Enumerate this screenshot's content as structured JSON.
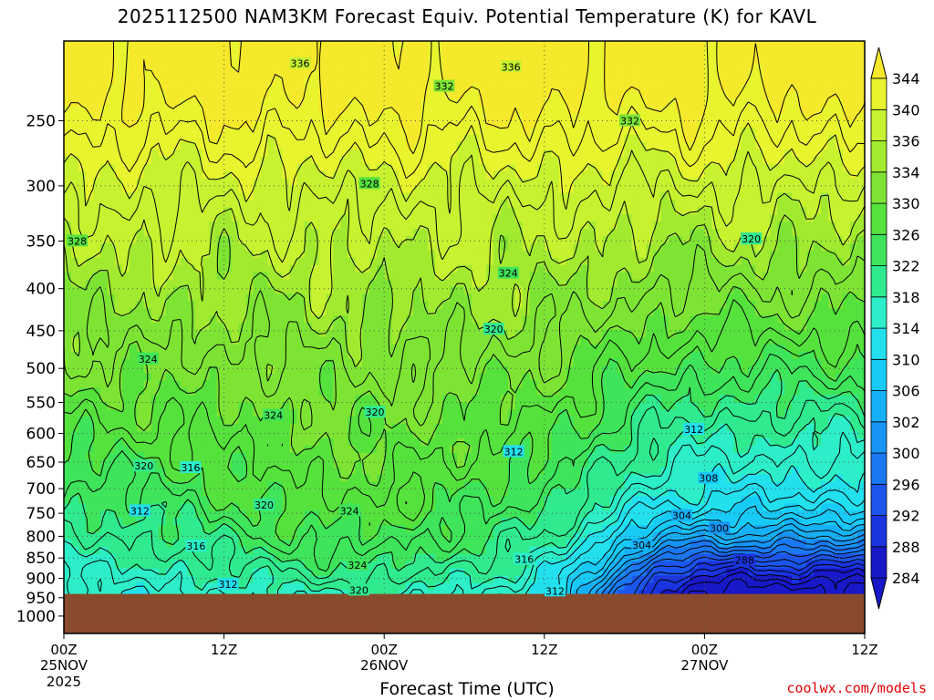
{
  "header": {
    "title": "2025112500 NAM3KM Forecast Equiv. Potential Temperature (K) for KAVL"
  },
  "footer": {
    "xlabel": "Forecast Time (UTC)",
    "credit": "coolwx.com/models"
  },
  "colors": {
    "ground": "#8b4a2b",
    "frame": "#000000",
    "contour": "#000000",
    "grid": "#555555"
  },
  "chart_data": {
    "type": "heatmap",
    "title": "2025112500 NAM3KM Forecast Equiv. Potential Temperature (K) for KAVL",
    "xlabel": "Forecast Time (UTC)",
    "ylabel": "",
    "x_range_hours": [
      0,
      60
    ],
    "x_ticks": [
      {
        "hour": 0,
        "label": "00Z",
        "sub": "25NOV",
        "sub2": "2025"
      },
      {
        "hour": 12,
        "label": "12Z",
        "sub": "",
        "sub2": ""
      },
      {
        "hour": 24,
        "label": "00Z",
        "sub": "26NOV",
        "sub2": ""
      },
      {
        "hour": 36,
        "label": "12Z",
        "sub": "",
        "sub2": ""
      },
      {
        "hour": 48,
        "label": "00Z",
        "sub": "27NOV",
        "sub2": ""
      },
      {
        "hour": 60,
        "label": "12Z",
        "sub": "",
        "sub2": ""
      }
    ],
    "y_axis": "pressure (hPa), log scale, decreasing upward",
    "y_range": [
      1050,
      200
    ],
    "y_ticks": [
      250,
      300,
      350,
      400,
      450,
      500,
      550,
      600,
      650,
      700,
      750,
      800,
      850,
      900,
      950,
      1000
    ],
    "surface_pressure_hPa": 940,
    "colorbar": {
      "levels": [
        284,
        288,
        292,
        296,
        300,
        302,
        306,
        310,
        314,
        318,
        322,
        326,
        330,
        334,
        336,
        340,
        344
      ],
      "colors": [
        "#1818c8",
        "#1a35e0",
        "#1c55ec",
        "#1a78f2",
        "#1795f4",
        "#16b0f6",
        "#18cbf6",
        "#22e0ee",
        "#2ceec8",
        "#30ea90",
        "#3ee45a",
        "#56e23c",
        "#7ee434",
        "#a2ea30",
        "#c6f230",
        "#e8f42e",
        "#f6e82a"
      ],
      "extend": "both"
    },
    "contour_interval_K": 2,
    "contour_labels": [
      {
        "value": "336",
        "hour": 17.7,
        "p": 213
      },
      {
        "value": "336",
        "hour": 33.5,
        "p": 215
      },
      {
        "value": "332",
        "hour": 28.5,
        "p": 227
      },
      {
        "value": "332",
        "hour": 42.4,
        "p": 250
      },
      {
        "value": "328",
        "hour": 22.9,
        "p": 298
      },
      {
        "value": "328",
        "hour": 1,
        "p": 350
      },
      {
        "value": "320",
        "hour": 51.5,
        "p": 348
      },
      {
        "value": "324",
        "hour": 33.3,
        "p": 383
      },
      {
        "value": "320",
        "hour": 32.2,
        "p": 448
      },
      {
        "value": "324",
        "hour": 6.3,
        "p": 487
      },
      {
        "value": "324",
        "hour": 15.7,
        "p": 570
      },
      {
        "value": "320",
        "hour": 23.3,
        "p": 565
      },
      {
        "value": "312",
        "hour": 47.2,
        "p": 593
      },
      {
        "value": "312",
        "hour": 33.7,
        "p": 631
      },
      {
        "value": "320",
        "hour": 6.0,
        "p": 657
      },
      {
        "value": "316",
        "hour": 9.5,
        "p": 660
      },
      {
        "value": "308",
        "hour": 48.3,
        "p": 680
      },
      {
        "value": "312",
        "hour": 5.7,
        "p": 745
      },
      {
        "value": "320",
        "hour": 15.0,
        "p": 733
      },
      {
        "value": "324",
        "hour": 21.4,
        "p": 745
      },
      {
        "value": "304",
        "hour": 46.3,
        "p": 755
      },
      {
        "value": "300",
        "hour": 49.1,
        "p": 782
      },
      {
        "value": "316",
        "hour": 9.9,
        "p": 822
      },
      {
        "value": "304",
        "hour": 43.3,
        "p": 820
      },
      {
        "value": "316",
        "hour": 34.5,
        "p": 853
      },
      {
        "value": "288",
        "hour": 51.0,
        "p": 855
      },
      {
        "value": "324",
        "hour": 22.0,
        "p": 867
      },
      {
        "value": "312",
        "hour": 12.3,
        "p": 915
      },
      {
        "value": "320",
        "hour": 22.1,
        "p": 930
      },
      {
        "value": "312",
        "hour": 36.8,
        "p": 932
      }
    ]
  }
}
